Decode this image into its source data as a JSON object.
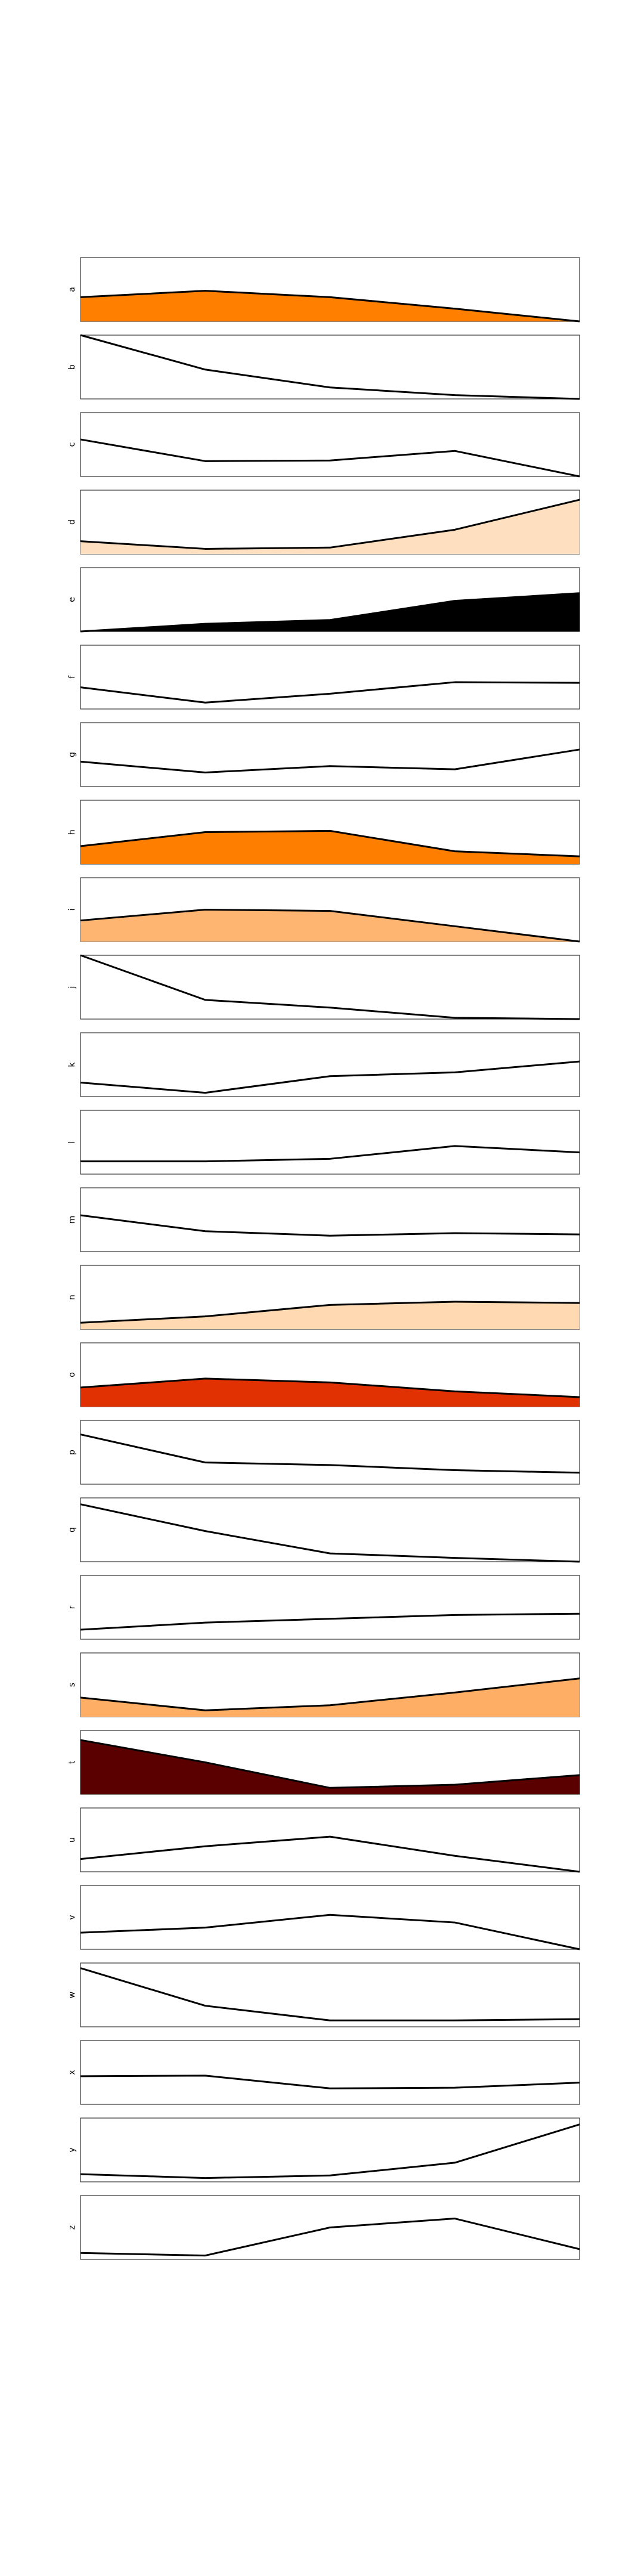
{
  "chart_data": {
    "type": "area",
    "title": "",
    "xlabel": "",
    "ylabel": "",
    "grid": false,
    "x": [
      0,
      1,
      2,
      3,
      4
    ],
    "panels": [
      {
        "label": "a",
        "values": [
          0.38,
          0.48,
          0.38,
          0.2,
          0.0
        ],
        "fill": "#ff7f00"
      },
      {
        "label": "b",
        "values": [
          1.0,
          0.46,
          0.18,
          0.06,
          0.0
        ],
        "fill": null
      },
      {
        "label": "c",
        "values": [
          0.58,
          0.24,
          0.25,
          0.4,
          0.0
        ],
        "fill": null
      },
      {
        "label": "d",
        "values": [
          0.2,
          0.08,
          0.1,
          0.38,
          0.85
        ],
        "fill": "#fee0c1"
      },
      {
        "label": "e",
        "values": [
          0.0,
          0.12,
          0.18,
          0.48,
          0.6
        ],
        "fill": "#000000"
      },
      {
        "label": "f",
        "values": [
          0.34,
          0.1,
          0.24,
          0.42,
          0.41
        ],
        "fill": null
      },
      {
        "label": "g",
        "values": [
          0.39,
          0.22,
          0.32,
          0.27,
          0.58
        ],
        "fill": null
      },
      {
        "label": "h",
        "values": [
          0.28,
          0.5,
          0.52,
          0.2,
          0.12
        ],
        "fill": "#fe7f00"
      },
      {
        "label": "i",
        "values": [
          0.33,
          0.5,
          0.48,
          0.24,
          0.0
        ],
        "fill": "#feb572"
      },
      {
        "label": "j",
        "values": [
          1.0,
          0.3,
          0.18,
          0.02,
          0.0
        ],
        "fill": null
      },
      {
        "label": "k",
        "values": [
          0.22,
          0.06,
          0.32,
          0.38,
          0.55
        ],
        "fill": null
      },
      {
        "label": "l",
        "values": [
          0.2,
          0.2,
          0.24,
          0.44,
          0.34
        ],
        "fill": null
      },
      {
        "label": "m",
        "values": [
          0.57,
          0.32,
          0.25,
          0.29,
          0.27
        ],
        "fill": null
      },
      {
        "label": "n",
        "values": [
          0.1,
          0.2,
          0.38,
          0.43,
          0.41
        ],
        "fill": "#fed9b1"
      },
      {
        "label": "o",
        "values": [
          0.3,
          0.44,
          0.38,
          0.24,
          0.15
        ],
        "fill": "#e13102"
      },
      {
        "label": "p",
        "values": [
          0.78,
          0.34,
          0.3,
          0.22,
          0.18
        ],
        "fill": null
      },
      {
        "label": "q",
        "values": [
          0.9,
          0.48,
          0.13,
          0.06,
          0.0
        ],
        "fill": null
      },
      {
        "label": "r",
        "values": [
          0.15,
          0.26,
          0.32,
          0.38,
          0.4
        ],
        "fill": null
      },
      {
        "label": "s",
        "values": [
          0.3,
          0.1,
          0.18,
          0.38,
          0.6
        ],
        "fill": "#feaf65"
      },
      {
        "label": "t",
        "values": [
          0.85,
          0.5,
          0.1,
          0.15,
          0.3
        ],
        "fill": "#5a0000"
      },
      {
        "label": "u",
        "values": [
          0.2,
          0.4,
          0.55,
          0.25,
          0.0
        ],
        "fill": null
      },
      {
        "label": "v",
        "values": [
          0.26,
          0.34,
          0.54,
          0.42,
          0.0
        ],
        "fill": null
      },
      {
        "label": "w",
        "values": [
          0.92,
          0.33,
          0.1,
          0.1,
          0.12
        ],
        "fill": null
      },
      {
        "label": "x",
        "values": [
          0.44,
          0.45,
          0.25,
          0.26,
          0.34
        ],
        "fill": null
      },
      {
        "label": "y",
        "values": [
          0.12,
          0.06,
          0.1,
          0.3,
          0.9
        ],
        "fill": null
      },
      {
        "label": "z",
        "values": [
          0.1,
          0.06,
          0.5,
          0.64,
          0.16
        ],
        "fill": null
      }
    ]
  }
}
